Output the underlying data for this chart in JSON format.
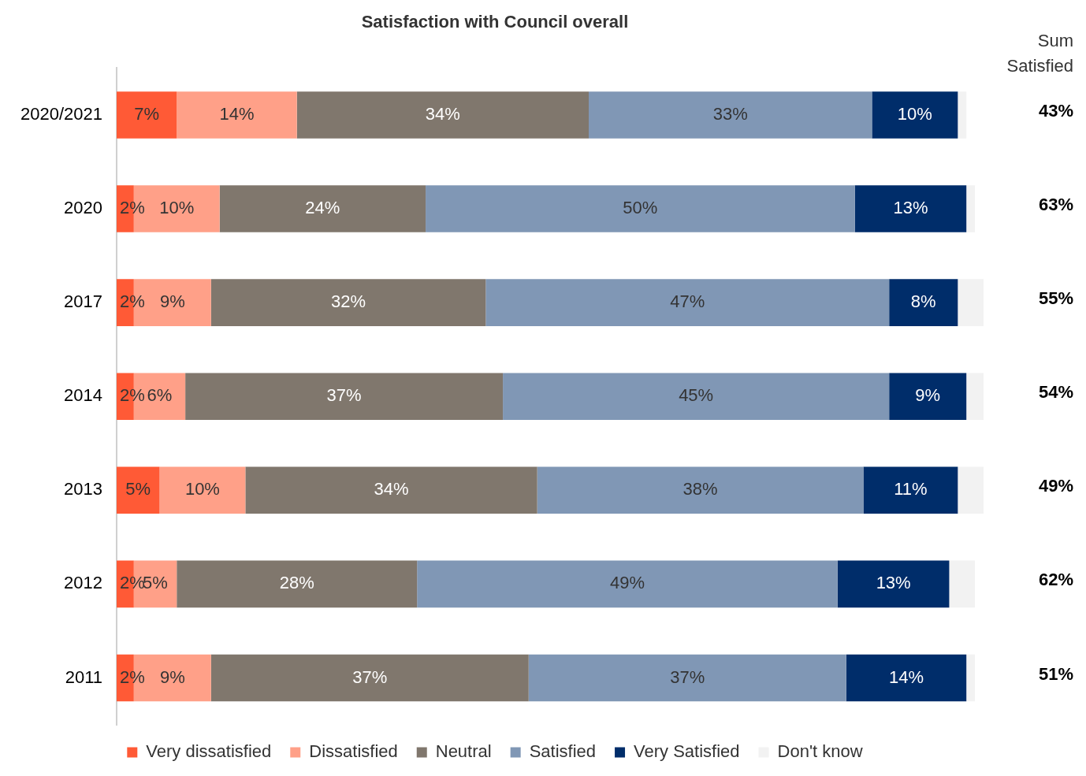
{
  "chart_data": {
    "type": "bar",
    "orientation": "horizontal",
    "stacked": true,
    "title": "Satisfaction with Council overall",
    "categories": [
      "2020/2021",
      "2020",
      "2017",
      "2014",
      "2013",
      "2012",
      "2011"
    ],
    "series": [
      {
        "name": "Very dissatisfied",
        "color": "#ff5a36",
        "values": [
          7,
          2,
          2,
          2,
          5,
          2,
          2
        ],
        "value_labels": [
          "7%",
          "2%",
          "2%",
          "2%",
          "5%",
          "2%",
          "2%"
        ]
      },
      {
        "name": "Dissatisfied",
        "color": "#ffa088",
        "values": [
          14,
          10,
          9,
          6,
          10,
          5,
          9
        ],
        "value_labels": [
          "14%",
          "10%",
          "9%",
          "6%",
          "10%",
          "5%",
          "9%"
        ]
      },
      {
        "name": "Neutral",
        "color": "#80776d",
        "values": [
          34,
          24,
          32,
          37,
          34,
          28,
          37
        ],
        "value_labels": [
          "34%",
          "24%",
          "32%",
          "37%",
          "34%",
          "28%",
          "37%"
        ]
      },
      {
        "name": "Satisfied",
        "color": "#8097b5",
        "values": [
          33,
          50,
          47,
          45,
          38,
          49,
          37
        ],
        "value_labels": [
          "33%",
          "50%",
          "47%",
          "45%",
          "38%",
          "49%",
          "37%"
        ]
      },
      {
        "name": "Very Satisfied",
        "color": "#002d6a",
        "values": [
          10,
          13,
          8,
          9,
          11,
          13,
          14
        ],
        "value_labels": [
          "10%",
          "13%",
          "8%",
          "9%",
          "11%",
          "13%",
          "14%"
        ]
      },
      {
        "name": "Don't know",
        "color": "#f2f2f2",
        "values": [
          1,
          1,
          3,
          2,
          3,
          3,
          1
        ]
      }
    ],
    "legend": "bottom",
    "grid": false,
    "annotations": [
      "Sum Satisfied",
      "43%",
      "63%",
      "55%",
      "54%",
      "49%",
      "62%",
      "51%"
    ]
  }
}
